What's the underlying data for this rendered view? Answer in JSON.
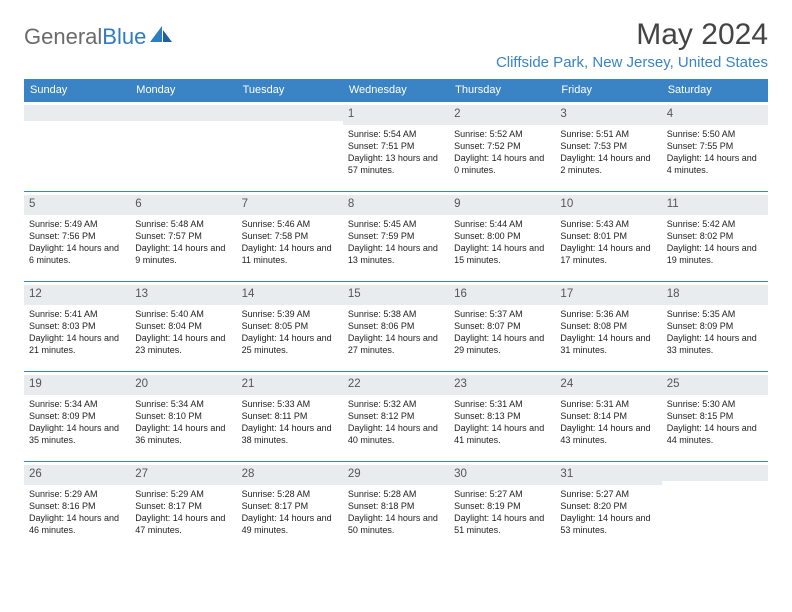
{
  "brand": {
    "part1": "General",
    "part2": "Blue"
  },
  "title": "May 2024",
  "location": "Cliffside Park, New Jersey, United States",
  "colors": {
    "header_bg": "#3a84c6",
    "daynum_bg": "#e9ecef",
    "border": "#3a84c6",
    "text": "#222222",
    "title_text": "#444444",
    "location_text": "#3a84c6"
  },
  "weekdays": [
    "Sunday",
    "Monday",
    "Tuesday",
    "Wednesday",
    "Thursday",
    "Friday",
    "Saturday"
  ],
  "grid": {
    "first_weekday_index": 3,
    "days_in_month": 31
  },
  "days": [
    {
      "n": 1,
      "sunrise": "5:54 AM",
      "sunset": "7:51 PM",
      "daylight": "13 hours and 57 minutes."
    },
    {
      "n": 2,
      "sunrise": "5:52 AM",
      "sunset": "7:52 PM",
      "daylight": "14 hours and 0 minutes."
    },
    {
      "n": 3,
      "sunrise": "5:51 AM",
      "sunset": "7:53 PM",
      "daylight": "14 hours and 2 minutes."
    },
    {
      "n": 4,
      "sunrise": "5:50 AM",
      "sunset": "7:55 PM",
      "daylight": "14 hours and 4 minutes."
    },
    {
      "n": 5,
      "sunrise": "5:49 AM",
      "sunset": "7:56 PM",
      "daylight": "14 hours and 6 minutes."
    },
    {
      "n": 6,
      "sunrise": "5:48 AM",
      "sunset": "7:57 PM",
      "daylight": "14 hours and 9 minutes."
    },
    {
      "n": 7,
      "sunrise": "5:46 AM",
      "sunset": "7:58 PM",
      "daylight": "14 hours and 11 minutes."
    },
    {
      "n": 8,
      "sunrise": "5:45 AM",
      "sunset": "7:59 PM",
      "daylight": "14 hours and 13 minutes."
    },
    {
      "n": 9,
      "sunrise": "5:44 AM",
      "sunset": "8:00 PM",
      "daylight": "14 hours and 15 minutes."
    },
    {
      "n": 10,
      "sunrise": "5:43 AM",
      "sunset": "8:01 PM",
      "daylight": "14 hours and 17 minutes."
    },
    {
      "n": 11,
      "sunrise": "5:42 AM",
      "sunset": "8:02 PM",
      "daylight": "14 hours and 19 minutes."
    },
    {
      "n": 12,
      "sunrise": "5:41 AM",
      "sunset": "8:03 PM",
      "daylight": "14 hours and 21 minutes."
    },
    {
      "n": 13,
      "sunrise": "5:40 AM",
      "sunset": "8:04 PM",
      "daylight": "14 hours and 23 minutes."
    },
    {
      "n": 14,
      "sunrise": "5:39 AM",
      "sunset": "8:05 PM",
      "daylight": "14 hours and 25 minutes."
    },
    {
      "n": 15,
      "sunrise": "5:38 AM",
      "sunset": "8:06 PM",
      "daylight": "14 hours and 27 minutes."
    },
    {
      "n": 16,
      "sunrise": "5:37 AM",
      "sunset": "8:07 PM",
      "daylight": "14 hours and 29 minutes."
    },
    {
      "n": 17,
      "sunrise": "5:36 AM",
      "sunset": "8:08 PM",
      "daylight": "14 hours and 31 minutes."
    },
    {
      "n": 18,
      "sunrise": "5:35 AM",
      "sunset": "8:09 PM",
      "daylight": "14 hours and 33 minutes."
    },
    {
      "n": 19,
      "sunrise": "5:34 AM",
      "sunset": "8:09 PM",
      "daylight": "14 hours and 35 minutes."
    },
    {
      "n": 20,
      "sunrise": "5:34 AM",
      "sunset": "8:10 PM",
      "daylight": "14 hours and 36 minutes."
    },
    {
      "n": 21,
      "sunrise": "5:33 AM",
      "sunset": "8:11 PM",
      "daylight": "14 hours and 38 minutes."
    },
    {
      "n": 22,
      "sunrise": "5:32 AM",
      "sunset": "8:12 PM",
      "daylight": "14 hours and 40 minutes."
    },
    {
      "n": 23,
      "sunrise": "5:31 AM",
      "sunset": "8:13 PM",
      "daylight": "14 hours and 41 minutes."
    },
    {
      "n": 24,
      "sunrise": "5:31 AM",
      "sunset": "8:14 PM",
      "daylight": "14 hours and 43 minutes."
    },
    {
      "n": 25,
      "sunrise": "5:30 AM",
      "sunset": "8:15 PM",
      "daylight": "14 hours and 44 minutes."
    },
    {
      "n": 26,
      "sunrise": "5:29 AM",
      "sunset": "8:16 PM",
      "daylight": "14 hours and 46 minutes."
    },
    {
      "n": 27,
      "sunrise": "5:29 AM",
      "sunset": "8:17 PM",
      "daylight": "14 hours and 47 minutes."
    },
    {
      "n": 28,
      "sunrise": "5:28 AM",
      "sunset": "8:17 PM",
      "daylight": "14 hours and 49 minutes."
    },
    {
      "n": 29,
      "sunrise": "5:28 AM",
      "sunset": "8:18 PM",
      "daylight": "14 hours and 50 minutes."
    },
    {
      "n": 30,
      "sunrise": "5:27 AM",
      "sunset": "8:19 PM",
      "daylight": "14 hours and 51 minutes."
    },
    {
      "n": 31,
      "sunrise": "5:27 AM",
      "sunset": "8:20 PM",
      "daylight": "14 hours and 53 minutes."
    }
  ],
  "labels": {
    "sunrise": "Sunrise:",
    "sunset": "Sunset:",
    "daylight": "Daylight:"
  }
}
